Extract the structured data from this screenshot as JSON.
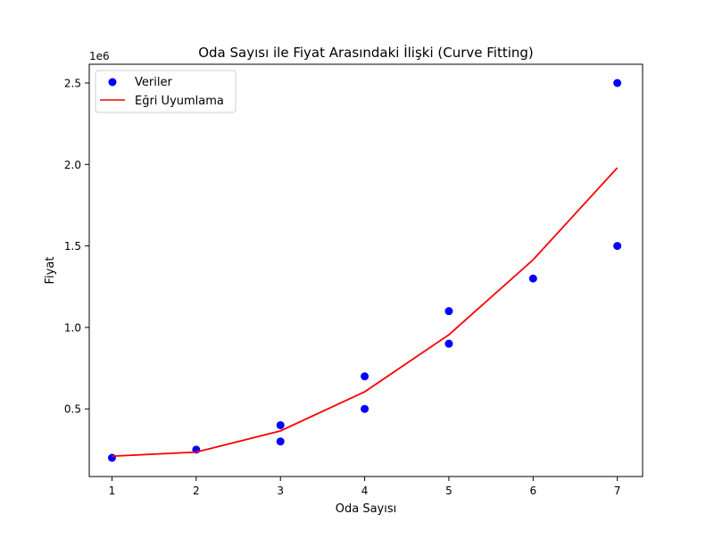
{
  "chart_data": {
    "type": "scatter",
    "title": "Oda Sayısı ile Fiyat Arasındaki İlişki (Curve Fitting)",
    "xlabel": "Oda Sayısı",
    "ylabel": "Fiyat",
    "y_scale_label": "1e6",
    "xlim": [
      0.73,
      7.3
    ],
    "ylim": [
      85000,
      2615000
    ],
    "x_ticks": [
      1,
      2,
      3,
      4,
      5,
      6,
      7
    ],
    "x_tick_labels": [
      "1",
      "2",
      "3",
      "4",
      "5",
      "6",
      "7"
    ],
    "y_ticks": [
      500000,
      1000000,
      1500000,
      2000000,
      2500000
    ],
    "y_tick_labels": [
      "0.5",
      "1.0",
      "1.5",
      "2.0",
      "2.5"
    ],
    "grid": false,
    "legend_position": "upper left",
    "series": [
      {
        "name": "Veriler",
        "kind": "scatter",
        "color": "#0000ff",
        "points": [
          {
            "x": 1,
            "y": 200000
          },
          {
            "x": 2,
            "y": 250000
          },
          {
            "x": 3,
            "y": 300000
          },
          {
            "x": 3,
            "y": 400000
          },
          {
            "x": 4,
            "y": 500000
          },
          {
            "x": 4,
            "y": 700000
          },
          {
            "x": 5,
            "y": 900000
          },
          {
            "x": 5,
            "y": 1100000
          },
          {
            "x": 6,
            "y": 1300000
          },
          {
            "x": 7,
            "y": 1500000
          },
          {
            "x": 7,
            "y": 2500000
          }
        ]
      },
      {
        "name": "Eğri Uyumlama",
        "kind": "line",
        "color": "#ff0000",
        "points": [
          {
            "x": 1,
            "y": 210000
          },
          {
            "x": 2,
            "y": 235000
          },
          {
            "x": 3,
            "y": 365000
          },
          {
            "x": 4,
            "y": 605000
          },
          {
            "x": 5,
            "y": 955000
          },
          {
            "x": 6,
            "y": 1415000
          },
          {
            "x": 7,
            "y": 1980000
          }
        ]
      }
    ]
  }
}
